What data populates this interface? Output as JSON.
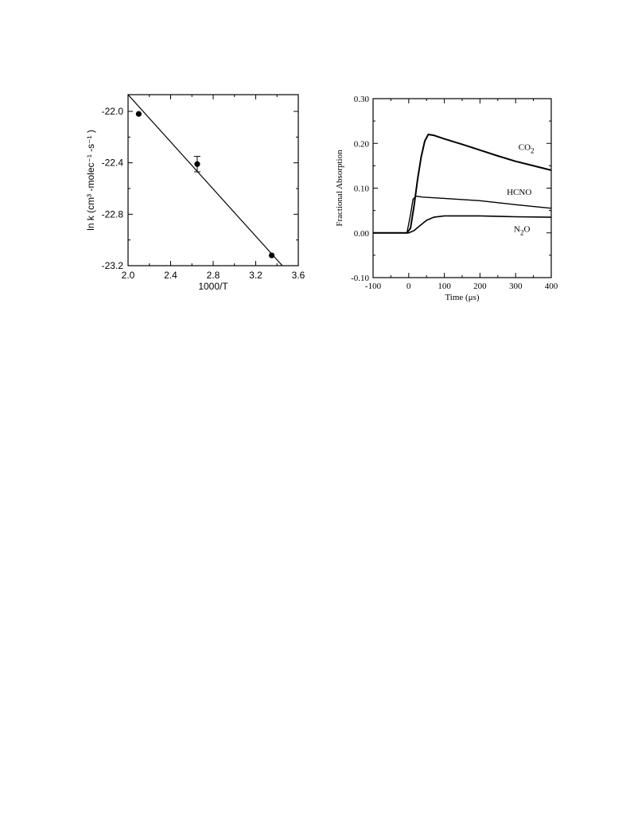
{
  "chart_data": [
    {
      "type": "scatter",
      "xlabel": "1000/T",
      "ylabel": "ln k (cm³ -molec⁻¹ -s⁻¹ )",
      "xlim": [
        2.0,
        3.6
      ],
      "ylim": [
        -23.2,
        -21.87
      ],
      "xticks": [
        "2.0",
        "2.4",
        "2.8",
        "3.2",
        "3.6"
      ],
      "yticks": [
        "-22.0",
        "-22.4",
        "-22.8",
        "-23.2"
      ],
      "points": [
        {
          "x": 2.1,
          "y": -22.02
        },
        {
          "x": 2.65,
          "y": -22.41,
          "err": 0.06
        },
        {
          "x": 3.35,
          "y": -23.12
        }
      ],
      "fit_line": [
        {
          "x": 2.0,
          "y": -21.87
        },
        {
          "x": 3.45,
          "y": -23.2
        }
      ],
      "grid": false
    },
    {
      "type": "line",
      "xlabel": "Time (μs)",
      "ylabel": "Fractional Absorption",
      "xlim": [
        -100,
        400
      ],
      "ylim": [
        -0.1,
        0.3
      ],
      "xticks": [
        "-100",
        "0",
        "100",
        "200",
        "300",
        "400"
      ],
      "yticks": [
        "-0.10",
        "0.00",
        "0.10",
        "0.20",
        "0.30"
      ],
      "grid": false,
      "series": [
        {
          "name": "CO2",
          "label_main": "CO",
          "label_sub": "2",
          "points": [
            [
              -100,
              0.0
            ],
            [
              -5,
              0.0
            ],
            [
              5,
              0.01
            ],
            [
              15,
              0.06
            ],
            [
              25,
              0.12
            ],
            [
              35,
              0.17
            ],
            [
              45,
              0.205
            ],
            [
              55,
              0.22
            ],
            [
              70,
              0.218
            ],
            [
              100,
              0.21
            ],
            [
              150,
              0.198
            ],
            [
              200,
              0.185
            ],
            [
              250,
              0.172
            ],
            [
              300,
              0.16
            ],
            [
              350,
              0.15
            ],
            [
              400,
              0.14
            ]
          ]
        },
        {
          "name": "HCNO",
          "label_main": "HCNO",
          "label_sub": "",
          "points": [
            [
              -100,
              0.0
            ],
            [
              -5,
              0.0
            ],
            [
              5,
              0.04
            ],
            [
              12,
              0.075
            ],
            [
              20,
              0.082
            ],
            [
              40,
              0.08
            ],
            [
              100,
              0.077
            ],
            [
              200,
              0.072
            ],
            [
              300,
              0.063
            ],
            [
              400,
              0.055
            ]
          ]
        },
        {
          "name": "N2O",
          "label_main": "N",
          "label_sub": "2",
          "label_tail": "O",
          "points": [
            [
              -100,
              0.0
            ],
            [
              0,
              0.0
            ],
            [
              15,
              0.005
            ],
            [
              30,
              0.015
            ],
            [
              50,
              0.028
            ],
            [
              70,
              0.035
            ],
            [
              100,
              0.038
            ],
            [
              200,
              0.038
            ],
            [
              300,
              0.036
            ],
            [
              400,
              0.035
            ]
          ]
        }
      ]
    }
  ]
}
